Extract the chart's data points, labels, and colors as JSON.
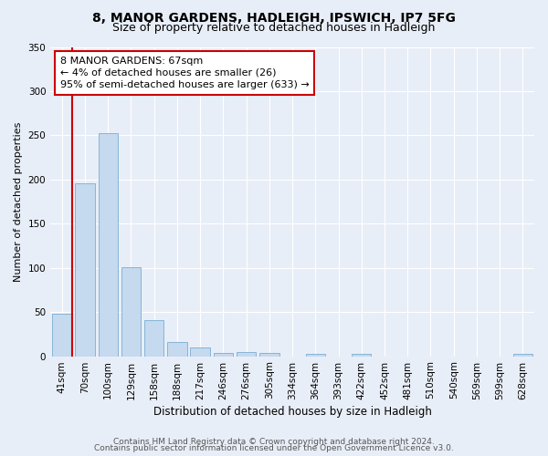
{
  "title1": "8, MANOR GARDENS, HADLEIGH, IPSWICH, IP7 5FG",
  "title2": "Size of property relative to detached houses in Hadleigh",
  "xlabel": "Distribution of detached houses by size in Hadleigh",
  "ylabel": "Number of detached properties",
  "categories": [
    "41sqm",
    "70sqm",
    "100sqm",
    "129sqm",
    "158sqm",
    "188sqm",
    "217sqm",
    "246sqm",
    "276sqm",
    "305sqm",
    "334sqm",
    "364sqm",
    "393sqm",
    "422sqm",
    "452sqm",
    "481sqm",
    "510sqm",
    "540sqm",
    "569sqm",
    "599sqm",
    "628sqm"
  ],
  "values": [
    48,
    196,
    252,
    101,
    41,
    16,
    10,
    4,
    5,
    4,
    0,
    3,
    0,
    3,
    0,
    0,
    0,
    0,
    0,
    0,
    3
  ],
  "bar_color": "#c5d9ef",
  "bar_edge_color": "#7aadd4",
  "highlight_color": "#cc0000",
  "annotation_text": "8 MANOR GARDENS: 67sqm\n← 4% of detached houses are smaller (26)\n95% of semi-detached houses are larger (633) →",
  "annotation_box_color": "#ffffff",
  "annotation_box_edge_color": "#cc0000",
  "ylim": [
    0,
    350
  ],
  "yticks": [
    0,
    50,
    100,
    150,
    200,
    250,
    300,
    350
  ],
  "footer1": "Contains HM Land Registry data © Crown copyright and database right 2024.",
  "footer2": "Contains public sector information licensed under the Open Government Licence v3.0.",
  "bg_color": "#e8eef7",
  "plot_bg_color": "#e8eef7",
  "title1_fontsize": 10,
  "title2_fontsize": 9,
  "xlabel_fontsize": 8.5,
  "ylabel_fontsize": 8,
  "tick_fontsize": 7.5,
  "annotation_fontsize": 8,
  "footer_fontsize": 6.5
}
